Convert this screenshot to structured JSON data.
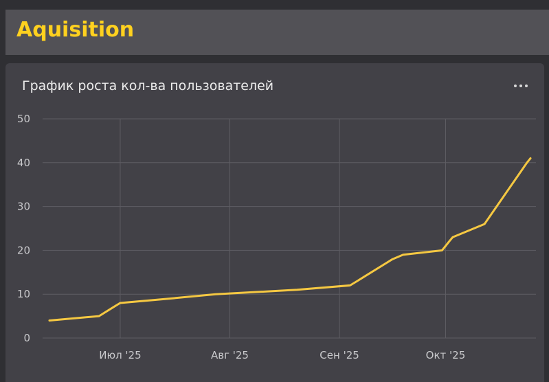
{
  "header": {
    "title": "Aquisition"
  },
  "panel": {
    "title": "График роста кол-ва пользователей",
    "menu_icon": "more-dots-icon"
  },
  "colors": {
    "line": "#f5c842",
    "grid": "#5e5d63",
    "accent": "#ffd11f"
  },
  "chart_data": {
    "type": "line",
    "title": "График роста кол-ва пользователей",
    "xlabel": "",
    "ylabel": "",
    "ylim": [
      0,
      50
    ],
    "yticks": [
      0,
      10,
      20,
      30,
      40,
      50
    ],
    "xlim": [
      "2025-06-11",
      "2025-10-25"
    ],
    "xticks": [
      {
        "date": "2025-07-01",
        "label": "Июл '25"
      },
      {
        "date": "2025-08-01",
        "label": "Авг '25"
      },
      {
        "date": "2025-09-01",
        "label": "Сен '25"
      },
      {
        "date": "2025-10-01",
        "label": "Окт '25"
      }
    ],
    "grid": true,
    "series": [
      {
        "points": [
          {
            "x": "2025-06-11",
            "y": 4
          },
          {
            "x": "2025-06-25",
            "y": 5
          },
          {
            "x": "2025-06-29",
            "y": 7
          },
          {
            "x": "2025-07-01",
            "y": 8
          },
          {
            "x": "2025-07-15",
            "y": 9
          },
          {
            "x": "2025-07-28",
            "y": 10
          },
          {
            "x": "2025-08-20",
            "y": 11
          },
          {
            "x": "2025-09-04",
            "y": 12
          },
          {
            "x": "2025-09-06",
            "y": 13
          },
          {
            "x": "2025-09-08",
            "y": 14
          },
          {
            "x": "2025-09-16",
            "y": 18
          },
          {
            "x": "2025-09-19",
            "y": 19
          },
          {
            "x": "2025-09-30",
            "y": 20
          },
          {
            "x": "2025-10-01",
            "y": 21
          },
          {
            "x": "2025-10-02",
            "y": 22
          },
          {
            "x": "2025-10-03",
            "y": 23
          },
          {
            "x": "2025-10-12",
            "y": 26
          },
          {
            "x": "2025-10-24",
            "y": 40
          },
          {
            "x": "2025-10-25",
            "y": 41
          }
        ]
      }
    ]
  }
}
